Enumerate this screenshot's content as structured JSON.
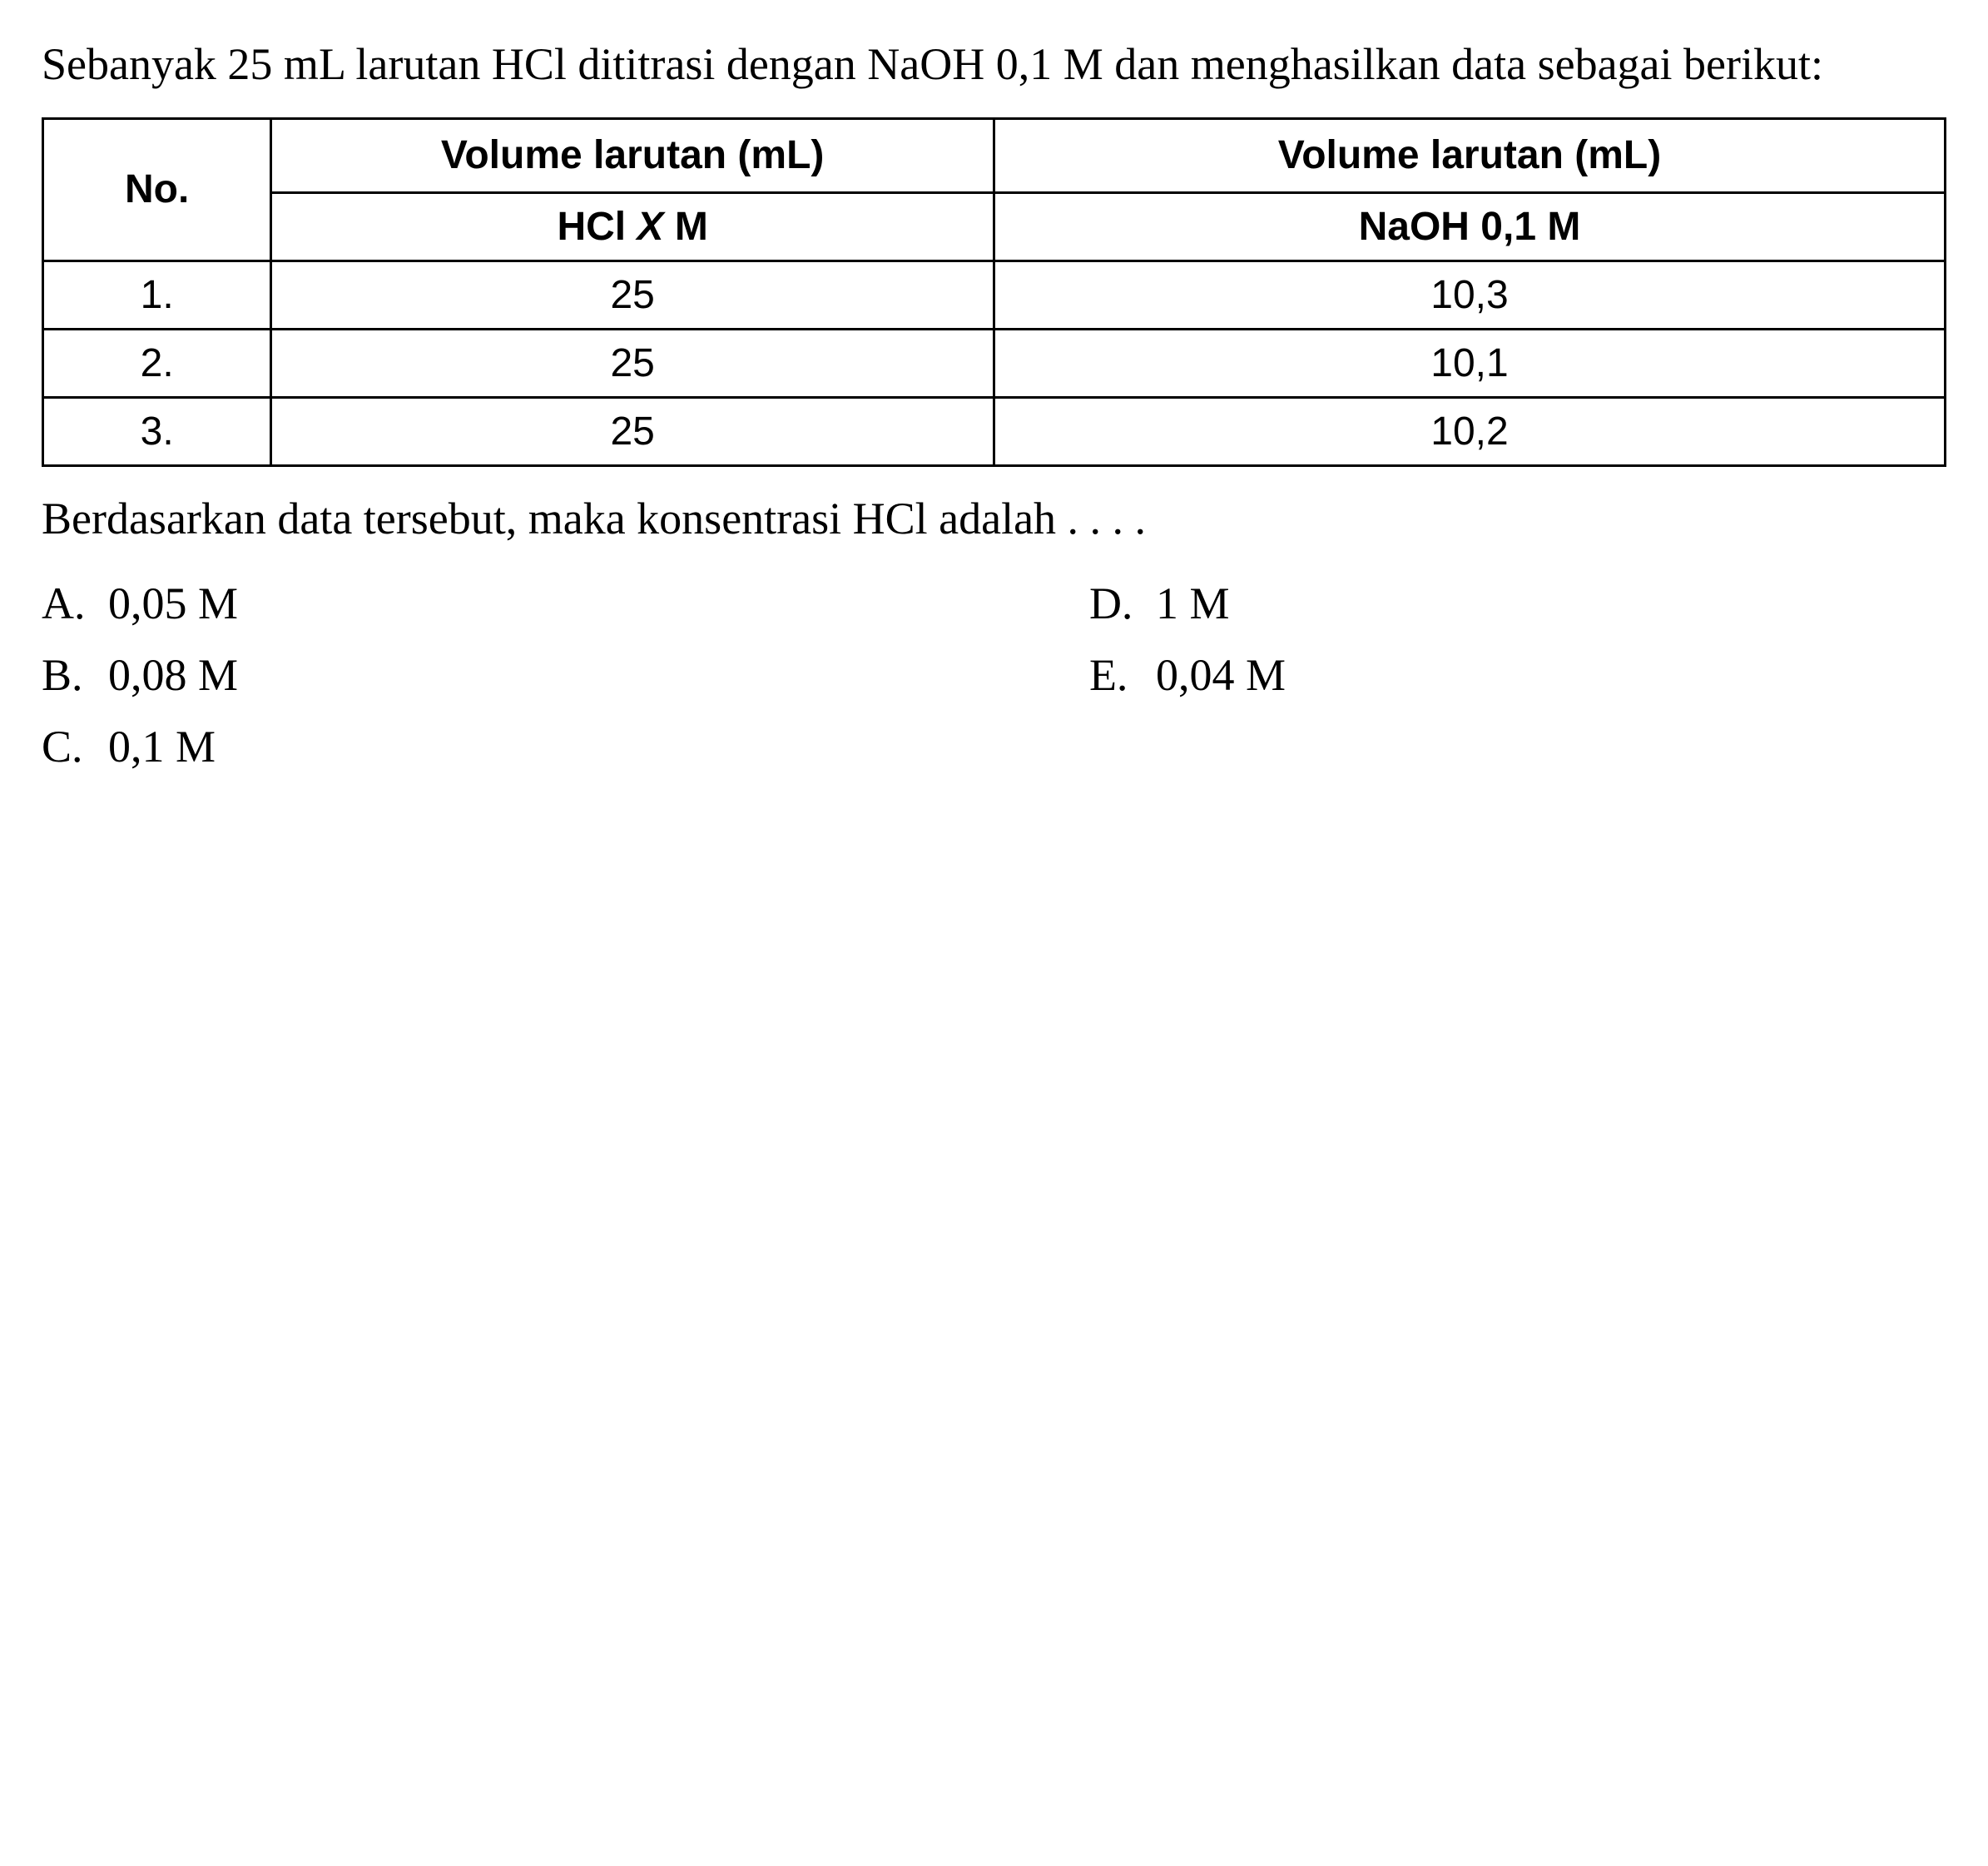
{
  "question": {
    "text": "Sebanyak 25 mL larutan HCl dititrasi dengan NaOH 0,1 M dan menghasilkan data sebagai berikut:"
  },
  "table": {
    "headers": {
      "no": "No.",
      "vol1_top": "Volume larutan (mL)",
      "vol2_top": "Volume larutan (mL)",
      "vol1_sub_prefix": "HCl ",
      "vol1_sub_x": "X",
      "vol1_sub_suffix": " M",
      "vol2_sub": "NaOH 0,1 M"
    },
    "rows": [
      {
        "no": "1.",
        "vol1": "25",
        "vol2": "10,3"
      },
      {
        "no": "2.",
        "vol1": "25",
        "vol2": "10,1"
      },
      {
        "no": "3.",
        "vol1": "25",
        "vol2": "10,2"
      }
    ]
  },
  "prompt": "Berdasarkan data tersebut, maka konsentrasi HCl adalah . . . .",
  "options": {
    "a": {
      "letter": "A.",
      "value": "0,05 M"
    },
    "b": {
      "letter": "B.",
      "value": "0,08 M"
    },
    "c": {
      "letter": "C.",
      "value": "0,1 M"
    },
    "d": {
      "letter": "D.",
      "value": "1 M"
    },
    "e": {
      "letter": "E.",
      "value": "0,04 M"
    }
  },
  "styling": {
    "font_size_body": 54,
    "font_size_table": 48,
    "border_color": "#000000",
    "border_width": 3,
    "background_color": "#ffffff",
    "text_color": "#000000"
  }
}
